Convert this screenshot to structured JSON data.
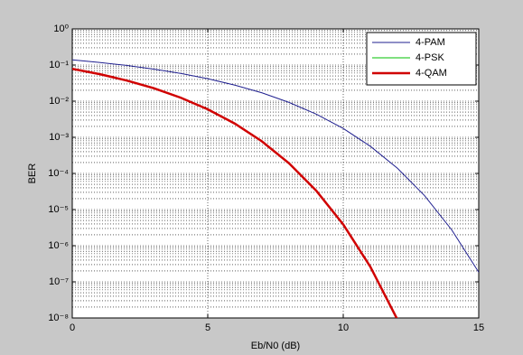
{
  "chart_data": {
    "type": "line",
    "x_label": "Eb/N0 (dB)",
    "y_label": "BER",
    "x": [
      0,
      1,
      2,
      3,
      4,
      5,
      6,
      7,
      8,
      9,
      10,
      11,
      12,
      13,
      14,
      15
    ],
    "series": [
      {
        "name": "4-PAM",
        "color": "#1f1f8f",
        "width": 1,
        "values": [
          0.139,
          0.118,
          0.0976,
          0.0774,
          0.0586,
          0.0419,
          0.0278,
          0.017,
          0.00923,
          0.00439,
          0.00176,
          0.000564,
          0.000139,
          2.43e-05,
          2.76e-06,
          1.84e-07
        ]
      },
      {
        "name": "4-PSK",
        "color": "#00c000",
        "width": 1,
        "values": [
          0.0786,
          0.0563,
          0.0375,
          0.0229,
          0.0125,
          0.00595,
          0.00239,
          0.000773,
          0.000191,
          3.36e-05,
          3.87e-06,
          2.61e-07,
          9e-09,
          null,
          null,
          null
        ]
      },
      {
        "name": "4-QAM",
        "color": "#d00000",
        "width": 2.5,
        "values": [
          0.0786,
          0.0563,
          0.0375,
          0.0229,
          0.0125,
          0.00595,
          0.00239,
          0.000773,
          0.000191,
          3.36e-05,
          3.87e-06,
          2.61e-07,
          9e-09,
          null,
          null,
          null
        ]
      }
    ],
    "xlim": [
      0,
      15
    ],
    "xticks": [
      0,
      5,
      10,
      15
    ],
    "ylim": [
      1e-08,
      1
    ],
    "y_scale": "log",
    "yticks": [
      {
        "value": 1,
        "label": "10⁰"
      },
      {
        "value": 0.1,
        "label": "10⁻¹"
      },
      {
        "value": 0.01,
        "label": "10⁻²"
      },
      {
        "value": 0.001,
        "label": "10⁻³"
      },
      {
        "value": 0.0001,
        "label": "10⁻⁴"
      },
      {
        "value": 1e-05,
        "label": "10⁻⁵"
      },
      {
        "value": 1e-06,
        "label": "10⁻⁶"
      },
      {
        "value": 1e-07,
        "label": "10⁻⁷"
      },
      {
        "value": 1e-08,
        "label": "10⁻⁸"
      }
    ],
    "grid": true,
    "legend": "upper right"
  }
}
